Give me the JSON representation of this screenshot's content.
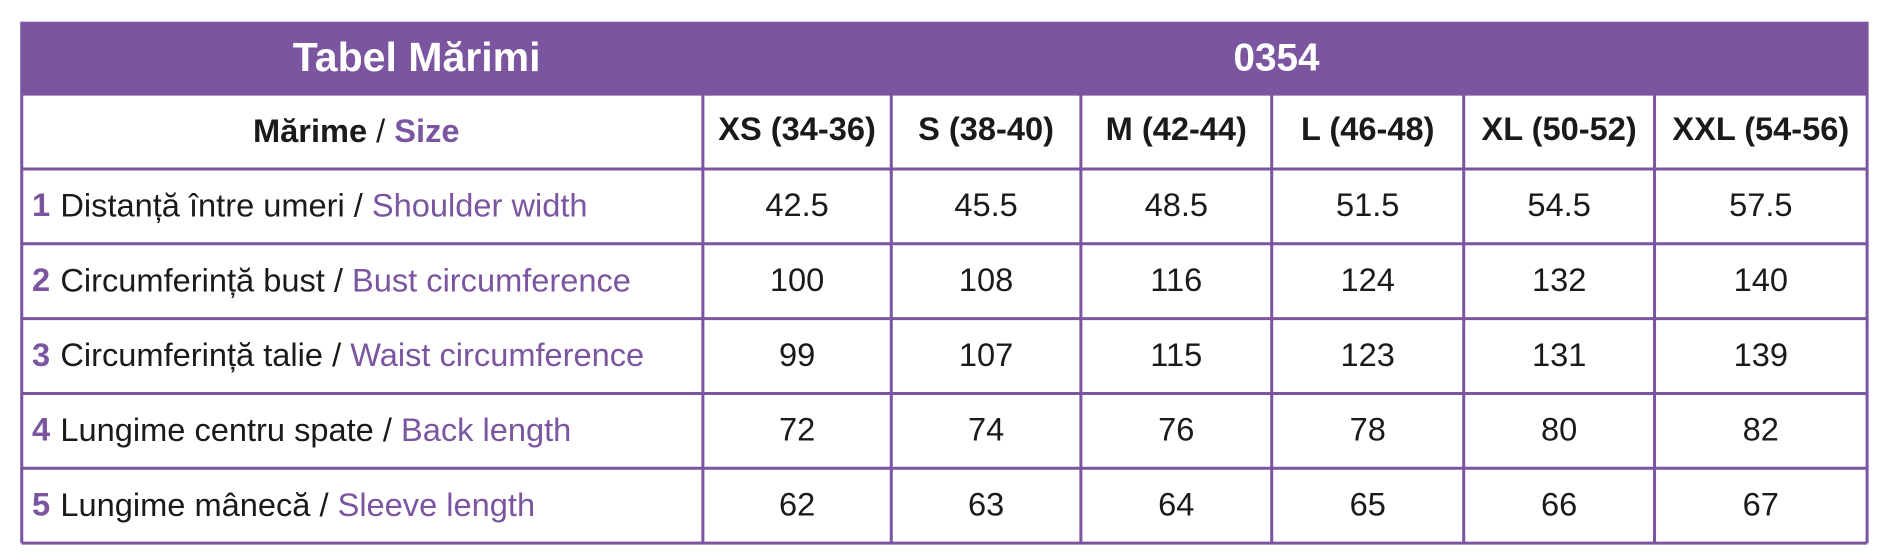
{
  "table": {
    "title": "Tabel Mărimi",
    "code": "0354",
    "separator": "/",
    "size_label": {
      "ro": "Mărime",
      "en": "Size"
    },
    "sizes": [
      "XS (34-36)",
      "S (38-40)",
      "M (42-44)",
      "L (46-48)",
      "XL (50-52)",
      "XXL (54-56)"
    ],
    "rows": [
      {
        "number": "1",
        "ro": "Distanță între umeri",
        "en": "Shoulder width",
        "values": [
          42.5,
          45.5,
          48.5,
          51.5,
          54.5,
          57.5
        ]
      },
      {
        "number": "2",
        "ro": "Circumferință bust",
        "en": "Bust circumference",
        "values": [
          100,
          108,
          116,
          124,
          132,
          140
        ]
      },
      {
        "number": "3",
        "ro": "Circumferință talie",
        "en": "Waist circumference",
        "values": [
          99,
          107,
          115,
          123,
          131,
          139
        ]
      },
      {
        "number": "4",
        "ro": "Lungime centru spate",
        "en": "Back length",
        "values": [
          72,
          74,
          76,
          78,
          80,
          82
        ]
      },
      {
        "number": "5",
        "ro": "Lungime mânecă",
        "en": "Sleeve length",
        "values": [
          62,
          63,
          64,
          65,
          66,
          67
        ]
      }
    ]
  }
}
